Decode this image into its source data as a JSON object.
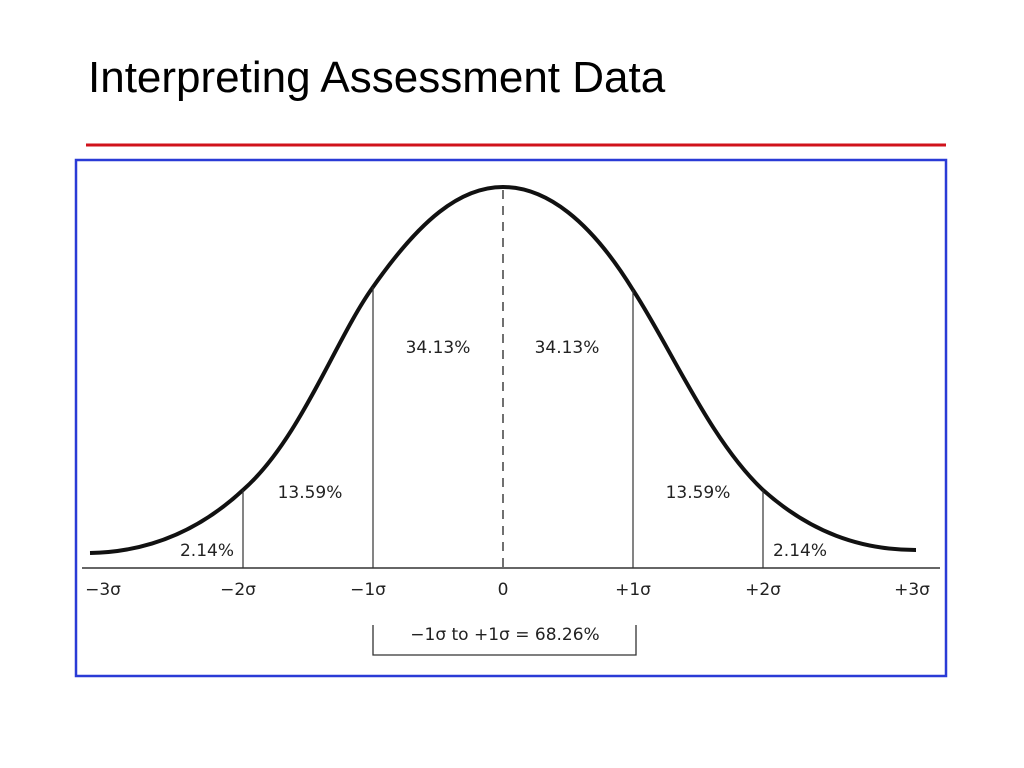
{
  "title": "Interpreting Assessment Data",
  "axis_labels": [
    "−3σ",
    "−2σ",
    "−1σ",
    "0",
    "+1σ",
    "+2σ",
    "+3σ"
  ],
  "regions": [
    "2.14%",
    "13.59%",
    "34.13%",
    "34.13%",
    "13.59%",
    "2.14%"
  ],
  "bracket_label": "−1σ to +1σ = 68.26%"
}
